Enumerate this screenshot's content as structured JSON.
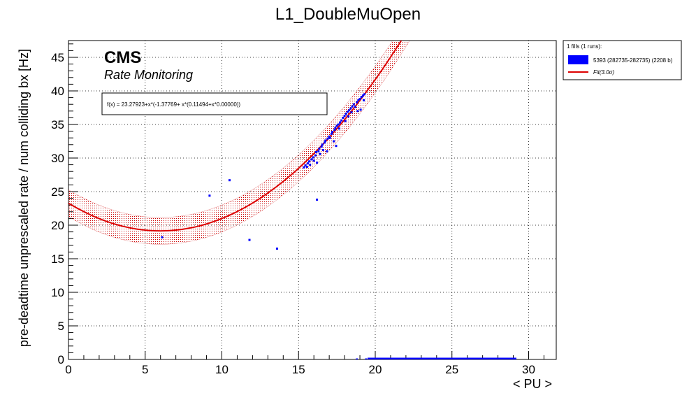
{
  "chart_data": {
    "type": "scatter",
    "title": "L1_DoubleMuOpen",
    "xlabel": "< PU >",
    "ylabel": "pre-deadtime unprescaled rate / num colliding bx [Hz]",
    "xlim": [
      0,
      31.8
    ],
    "ylim": [
      0,
      47.5
    ],
    "xticks": [
      "0",
      "5",
      "10",
      "15",
      "20",
      "25",
      "30"
    ],
    "yticks": [
      "0",
      "5",
      "10",
      "15",
      "20",
      "25",
      "30",
      "35",
      "40",
      "45"
    ],
    "grid": true,
    "cms_label": "CMS",
    "cms_sublabel": "Rate Monitoring",
    "fit_formula": "f(x) = 23.27923+x*(-1.37769+ x*(0.11494+x*0.00000))",
    "fit": {
      "a0": 23.27923,
      "a1": -1.37769,
      "a2": 0.11494,
      "band_sigma": 3.0,
      "band_halfwidth": 2.0,
      "color": "#dd0000"
    },
    "legend": {
      "header": "1 fills (1 runs):",
      "position": "top-right",
      "entries": [
        {
          "label": "5393 (282735-282735) (2208 b)",
          "color": "#0000ff"
        },
        {
          "label": "Fit(3.0σ)",
          "color": "#dd0000"
        }
      ]
    },
    "series": [
      {
        "name": "5393 (282735-282735) (2208 b)",
        "color": "#0000ff",
        "points": [
          [
            6.1,
            18.2
          ],
          [
            9.2,
            24.4
          ],
          [
            10.5,
            26.7
          ],
          [
            11.8,
            17.8
          ],
          [
            13.6,
            16.5
          ],
          [
            16.2,
            23.8
          ],
          [
            15.35,
            28.6
          ],
          [
            15.45,
            28.9
          ],
          [
            15.55,
            28.7
          ],
          [
            15.6,
            29.2
          ],
          [
            15.7,
            29.5
          ],
          [
            15.75,
            29.0
          ],
          [
            15.85,
            29.8
          ],
          [
            15.95,
            30.1
          ],
          [
            16.0,
            29.6
          ],
          [
            16.1,
            30.4
          ],
          [
            16.15,
            30.9
          ],
          [
            16.2,
            29.3
          ],
          [
            16.3,
            31.0
          ],
          [
            16.35,
            31.4
          ],
          [
            16.4,
            30.6
          ],
          [
            16.5,
            31.7
          ],
          [
            16.55,
            32.0
          ],
          [
            16.6,
            31.2
          ],
          [
            16.7,
            32.3
          ],
          [
            16.75,
            32.6
          ],
          [
            16.85,
            31.0
          ],
          [
            16.9,
            32.9
          ],
          [
            17.0,
            33.2
          ],
          [
            17.05,
            33.0
          ],
          [
            17.15,
            33.6
          ],
          [
            17.2,
            33.9
          ],
          [
            17.3,
            32.5
          ],
          [
            17.35,
            34.2
          ],
          [
            17.4,
            34.5
          ],
          [
            17.45,
            31.8
          ],
          [
            17.5,
            34.8
          ],
          [
            17.6,
            35.0
          ],
          [
            17.65,
            34.4
          ],
          [
            17.7,
            35.3
          ],
          [
            17.8,
            35.6
          ],
          [
            17.9,
            36.0
          ],
          [
            18.0,
            36.3
          ],
          [
            18.05,
            35.5
          ],
          [
            18.1,
            36.6
          ],
          [
            18.2,
            36.9
          ],
          [
            18.25,
            36.2
          ],
          [
            18.3,
            37.1
          ],
          [
            18.4,
            37.4
          ],
          [
            18.45,
            36.8
          ],
          [
            18.5,
            37.7
          ],
          [
            18.6,
            38.0
          ],
          [
            18.7,
            37.6
          ],
          [
            18.8,
            38.3
          ],
          [
            18.85,
            37.0
          ],
          [
            18.9,
            38.6
          ],
          [
            19.0,
            38.8
          ],
          [
            19.05,
            37.2
          ],
          [
            19.1,
            39.1
          ],
          [
            19.2,
            39.3
          ],
          [
            19.25,
            38.6
          ],
          [
            19.3,
            39.5
          ],
          [
            18.8,
            0.0
          ],
          [
            19.4,
            0.0
          ],
          [
            20.0,
            0.0
          ],
          [
            21.0,
            0.0
          ],
          [
            22.0,
            0.0
          ],
          [
            23.0,
            0.0
          ],
          [
            24.0,
            0.0
          ],
          [
            25.0,
            0.0
          ],
          [
            26.0,
            0.0
          ],
          [
            27.0,
            0.0
          ],
          [
            28.0,
            0.0
          ],
          [
            29.0,
            0.0
          ]
        ]
      }
    ]
  }
}
